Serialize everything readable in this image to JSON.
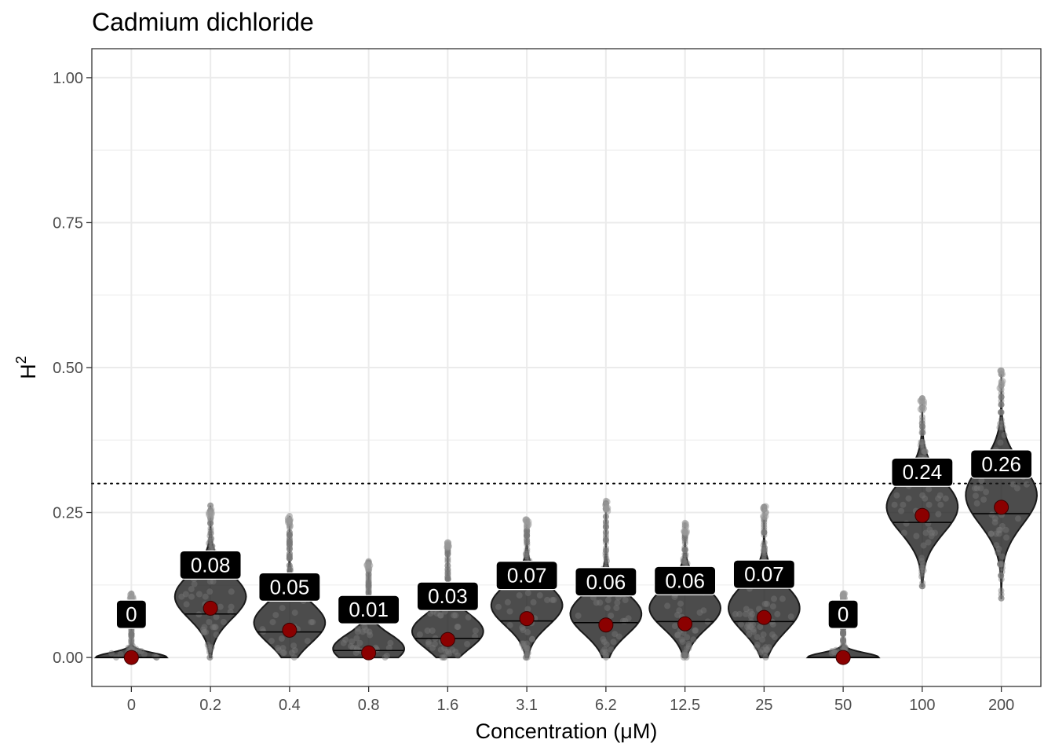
{
  "chart_data": {
    "type": "violin",
    "title": "Cadmium dichloride",
    "xlabel": "Concentration (μM)",
    "ylabel": {
      "base": "H",
      "superscript": "2"
    },
    "categories": [
      "0",
      "0.2",
      "0.4",
      "0.8",
      "1.6",
      "3.1",
      "6.2",
      "12.5",
      "25",
      "50",
      "100",
      "200"
    ],
    "point_estimates": [
      0,
      0.085,
      0.047,
      0.008,
      0.031,
      0.067,
      0.056,
      0.058,
      0.069,
      0,
      0.245,
      0.259
    ],
    "value_labels": [
      "0",
      "0.08",
      "0.05",
      "0.01",
      "0.03",
      "0.07",
      "0.06",
      "0.06",
      "0.07",
      "0",
      "0.24",
      "0.26"
    ],
    "distributions": [
      {
        "min": 0.0,
        "max": 0.11,
        "median": 0.0,
        "mode": 0.0,
        "spread": 0.008
      },
      {
        "min": 0.0,
        "max": 0.262,
        "median": 0.075,
        "mode": 0.105,
        "spread": 0.038
      },
      {
        "min": 0.0,
        "max": 0.244,
        "median": 0.044,
        "mode": 0.06,
        "spread": 0.035
      },
      {
        "min": 0.0,
        "max": 0.166,
        "median": 0.012,
        "mode": 0.015,
        "spread": 0.025
      },
      {
        "min": 0.0,
        "max": 0.198,
        "median": 0.033,
        "mode": 0.045,
        "spread": 0.03
      },
      {
        "min": 0.0,
        "max": 0.238,
        "median": 0.063,
        "mode": 0.09,
        "spread": 0.035
      },
      {
        "min": 0.0,
        "max": 0.27,
        "median": 0.06,
        "mode": 0.075,
        "spread": 0.035
      },
      {
        "min": 0.0,
        "max": 0.232,
        "median": 0.062,
        "mode": 0.085,
        "spread": 0.035
      },
      {
        "min": 0.0,
        "max": 0.264,
        "median": 0.062,
        "mode": 0.085,
        "spread": 0.04
      },
      {
        "min": 0.0,
        "max": 0.11,
        "median": 0.0,
        "mode": 0.0,
        "spread": 0.008
      },
      {
        "min": 0.123,
        "max": 0.447,
        "median": 0.233,
        "mode": 0.26,
        "spread": 0.045
      },
      {
        "min": 0.102,
        "max": 0.495,
        "median": 0.248,
        "mode": 0.28,
        "spread": 0.05
      }
    ],
    "yticks": [
      0.0,
      0.25,
      0.5,
      0.75,
      1.0
    ],
    "ytick_labels": [
      "0.00",
      "0.25",
      "0.50",
      "0.75",
      "1.00"
    ],
    "ylim": [
      -0.05,
      1.05
    ],
    "reference_line": 0.3,
    "grid": true,
    "legend": "none",
    "colors": {
      "violin_fill": "#1a1a1a",
      "violin_outline": "#1a1a1a",
      "point_fill": "#8b0000",
      "label_box": "#000000",
      "label_text": "#ffffff",
      "grid": "#ebebeb",
      "panel_border": "#333333"
    }
  }
}
